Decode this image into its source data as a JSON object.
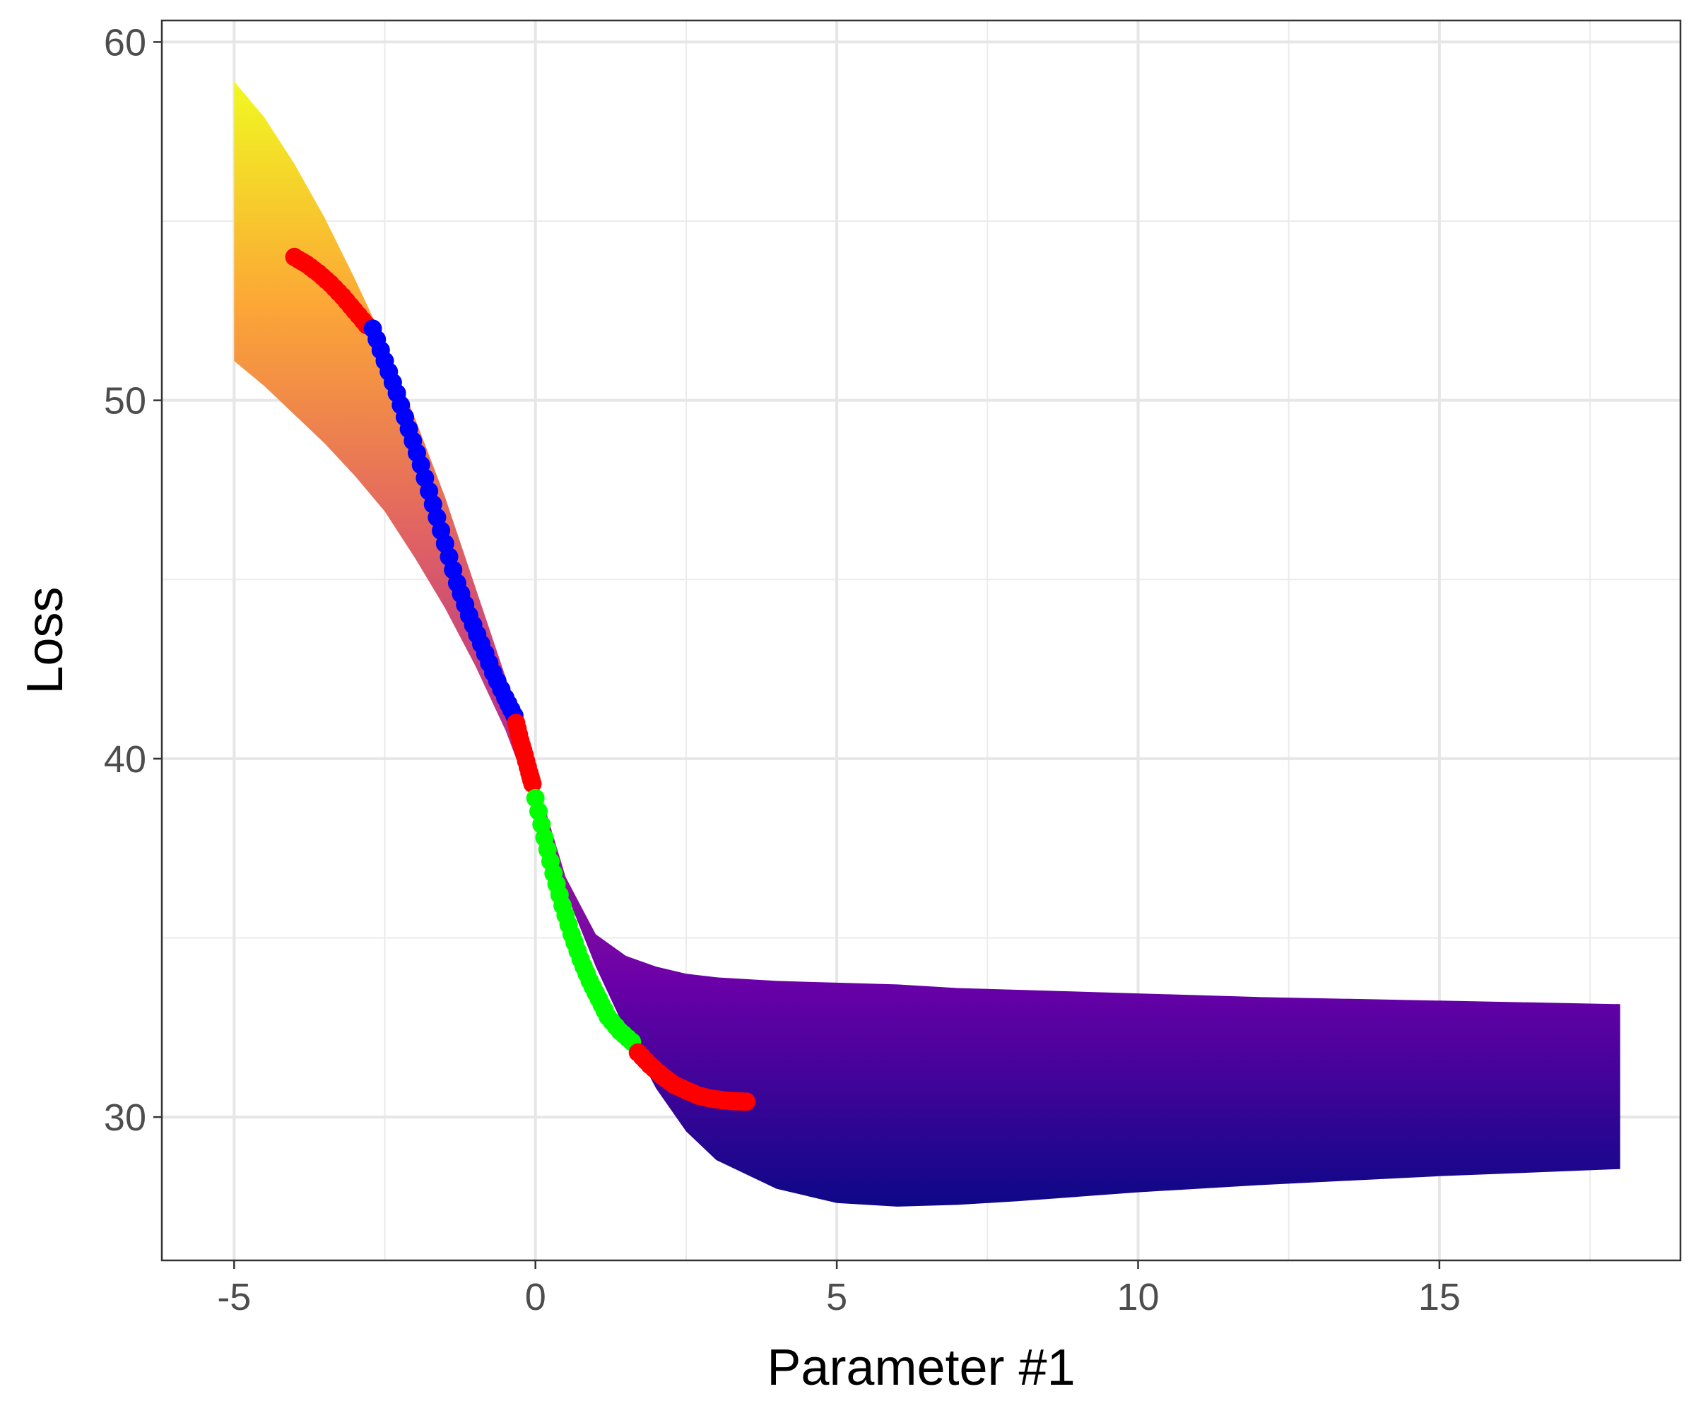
{
  "chart_data": {
    "type": "area",
    "xlabel": "Parameter #1",
    "ylabel": "Loss",
    "xlim": [
      -6.2,
      19.0
    ],
    "ylim": [
      26.0,
      60.6
    ],
    "x_ticks": [
      -5,
      0,
      5,
      10,
      15
    ],
    "x_tick_labels": [
      "-5",
      "0",
      "5",
      "10",
      "15"
    ],
    "y_ticks": [
      30,
      40,
      50,
      60
    ],
    "y_tick_labels": [
      "30",
      "40",
      "50",
      "60"
    ],
    "grid": true,
    "legend": "none",
    "band": {
      "x": [
        -5.0,
        -4.5,
        -4.0,
        -3.5,
        -3.0,
        -2.5,
        -2.0,
        -1.5,
        -1.0,
        -0.5,
        0.0,
        0.5,
        1.0,
        1.5,
        2.0,
        2.5,
        3.0,
        4.0,
        5.0,
        6.0,
        7.0,
        8.0,
        10.0,
        12.0,
        15.0,
        18.0
      ],
      "upper": [
        58.9,
        57.9,
        56.6,
        55.1,
        53.4,
        51.6,
        49.5,
        47.3,
        44.8,
        42.3,
        39.5,
        36.7,
        35.1,
        34.5,
        34.2,
        34.0,
        33.9,
        33.8,
        33.75,
        33.7,
        33.6,
        33.55,
        33.45,
        33.35,
        33.25,
        33.15
      ],
      "lower": [
        51.1,
        50.4,
        49.6,
        48.8,
        47.9,
        46.9,
        45.6,
        44.2,
        42.6,
        40.8,
        38.6,
        36.3,
        34.2,
        32.4,
        30.8,
        29.6,
        28.8,
        28.0,
        27.6,
        27.5,
        27.55,
        27.65,
        27.9,
        28.1,
        28.35,
        28.55
      ],
      "color_scale": [
        "#0d0887",
        "#6a00a8",
        "#b12a90",
        "#e16462",
        "#fca636",
        "#f0f921"
      ],
      "color_range": [
        27.5,
        58.9
      ]
    },
    "series": [
      {
        "color": "#ff0000",
        "x": [
          -4.0,
          -3.8,
          -3.6,
          -3.4,
          -3.2,
          -3.0,
          -2.8
        ],
        "y": [
          54.0,
          53.8,
          53.55,
          53.25,
          52.9,
          52.5,
          52.1
        ]
      },
      {
        "color": "#0000ff",
        "x": [
          -2.7,
          -2.5,
          -2.3,
          -2.1,
          -1.9,
          -1.7,
          -1.5,
          -1.3,
          -1.1,
          -0.9,
          -0.7,
          -0.5,
          -0.35
        ],
        "y": [
          52.0,
          51.1,
          50.2,
          49.2,
          48.2,
          47.1,
          46.0,
          44.9,
          44.0,
          43.2,
          42.4,
          41.7,
          41.2
        ]
      },
      {
        "color": "#ff0000",
        "x": [
          -0.32,
          -0.25,
          -0.18,
          -0.1,
          -0.05
        ],
        "y": [
          41.0,
          40.5,
          40.1,
          39.6,
          39.3
        ]
      },
      {
        "color": "#00ff00",
        "x": [
          0.0,
          0.15,
          0.3,
          0.45,
          0.6,
          0.75,
          0.9,
          1.05,
          1.2,
          1.4,
          1.6
        ],
        "y": [
          38.9,
          37.8,
          36.8,
          35.9,
          35.1,
          34.4,
          33.8,
          33.3,
          32.8,
          32.4,
          32.1
        ]
      },
      {
        "color": "#ff0000",
        "x": [
          1.7,
          1.9,
          2.1,
          2.3,
          2.5,
          2.7,
          2.9,
          3.1,
          3.3,
          3.5
        ],
        "y": [
          31.8,
          31.45,
          31.15,
          30.9,
          30.75,
          30.6,
          30.52,
          30.47,
          30.44,
          30.43
        ]
      }
    ]
  }
}
